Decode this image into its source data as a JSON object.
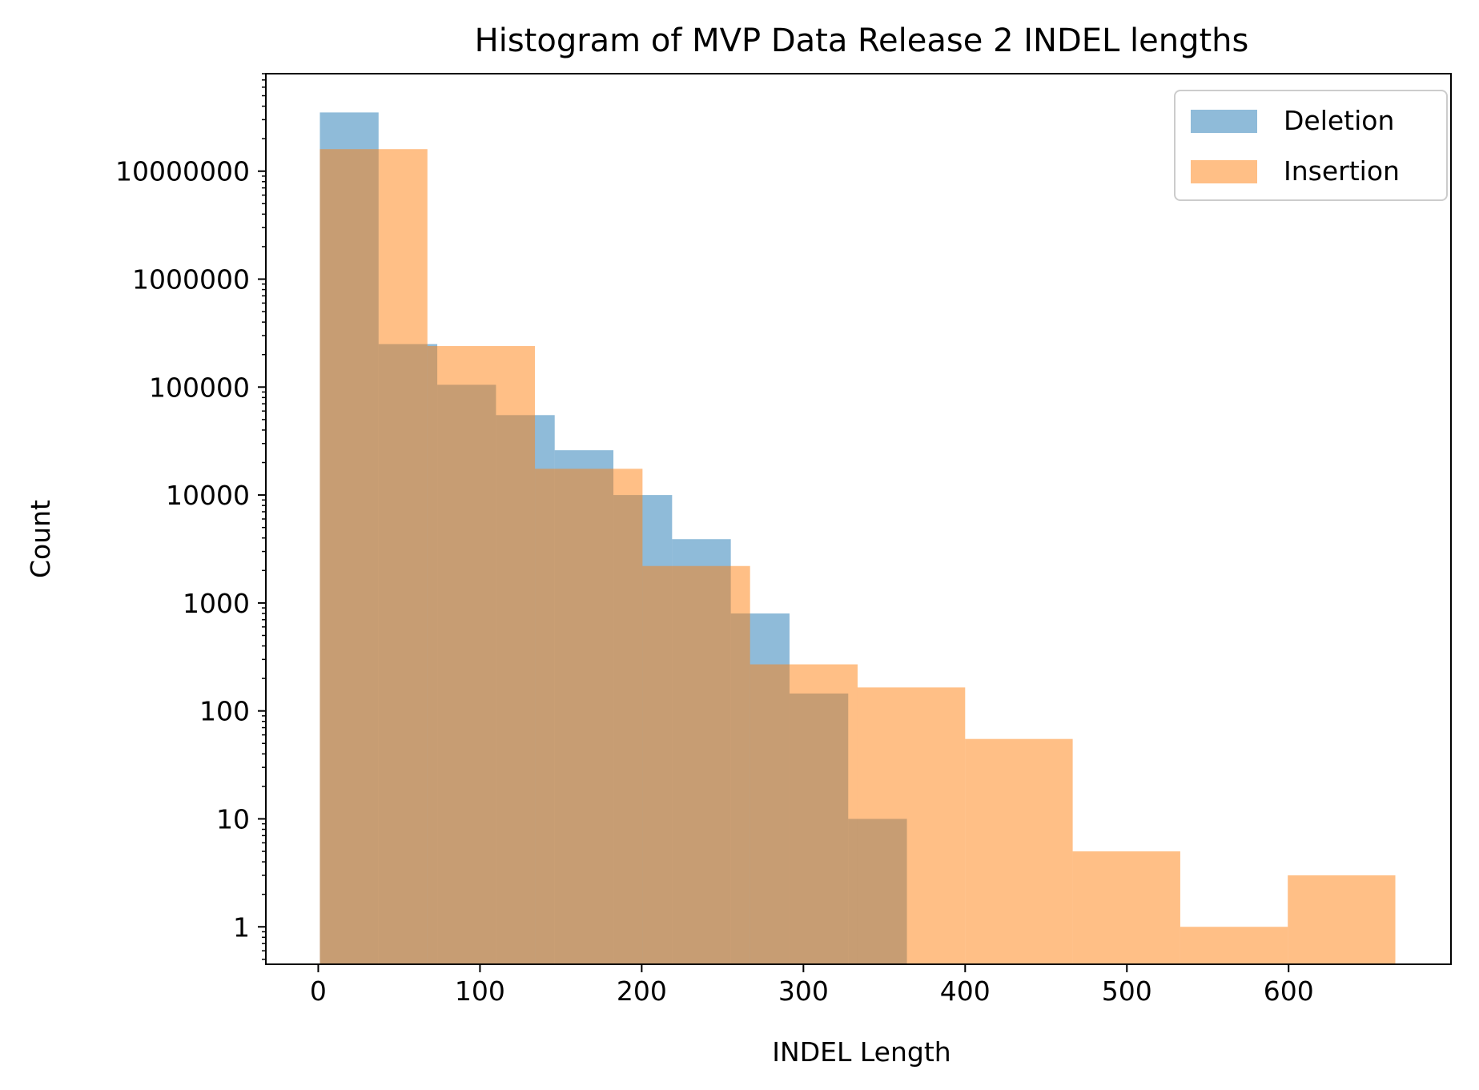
{
  "chart_data": {
    "type": "bar",
    "title": "Histogram of MVP Data Release 2 INDEL lengths",
    "xlabel": "INDEL Length",
    "ylabel": "Count",
    "x_scale": "linear",
    "y_scale": "log",
    "xlim": [
      -32.4,
      700.4
    ],
    "ylim": [
      0.45,
      80000000
    ],
    "x_ticks": [
      0,
      100,
      200,
      300,
      400,
      500,
      600
    ],
    "x_tick_labels": [
      "0",
      "100",
      "200",
      "300",
      "400",
      "500",
      "600"
    ],
    "y_ticks": [
      1,
      10,
      100,
      1000,
      10000,
      100000,
      1000000,
      10000000
    ],
    "y_tick_labels": [
      "1",
      "10",
      "100",
      "1000",
      "10000",
      "100000",
      "1000000",
      "10000000"
    ],
    "grid": false,
    "legend_position": "top-right",
    "series": [
      {
        "name": "Deletion",
        "color": "#1f77b4",
        "alpha": 0.5,
        "bin_edges": [
          1,
          37.3,
          73.6,
          109.9,
          146.2,
          182.5,
          218.8,
          255.1,
          291.4,
          327.7,
          364
        ],
        "counts": [
          35000000,
          250000,
          105000,
          55000,
          26000,
          10000,
          3900,
          800,
          145,
          10
        ]
      },
      {
        "name": "Insertion",
        "color": "#ff7f0e",
        "alpha": 0.5,
        "bin_edges": [
          1,
          67.5,
          134,
          200.5,
          267,
          333.5,
          400,
          466.5,
          533,
          599.5,
          666
        ],
        "counts": [
          16000000,
          240000,
          17500,
          2200,
          270,
          165,
          55,
          5,
          1,
          3
        ]
      }
    ]
  }
}
